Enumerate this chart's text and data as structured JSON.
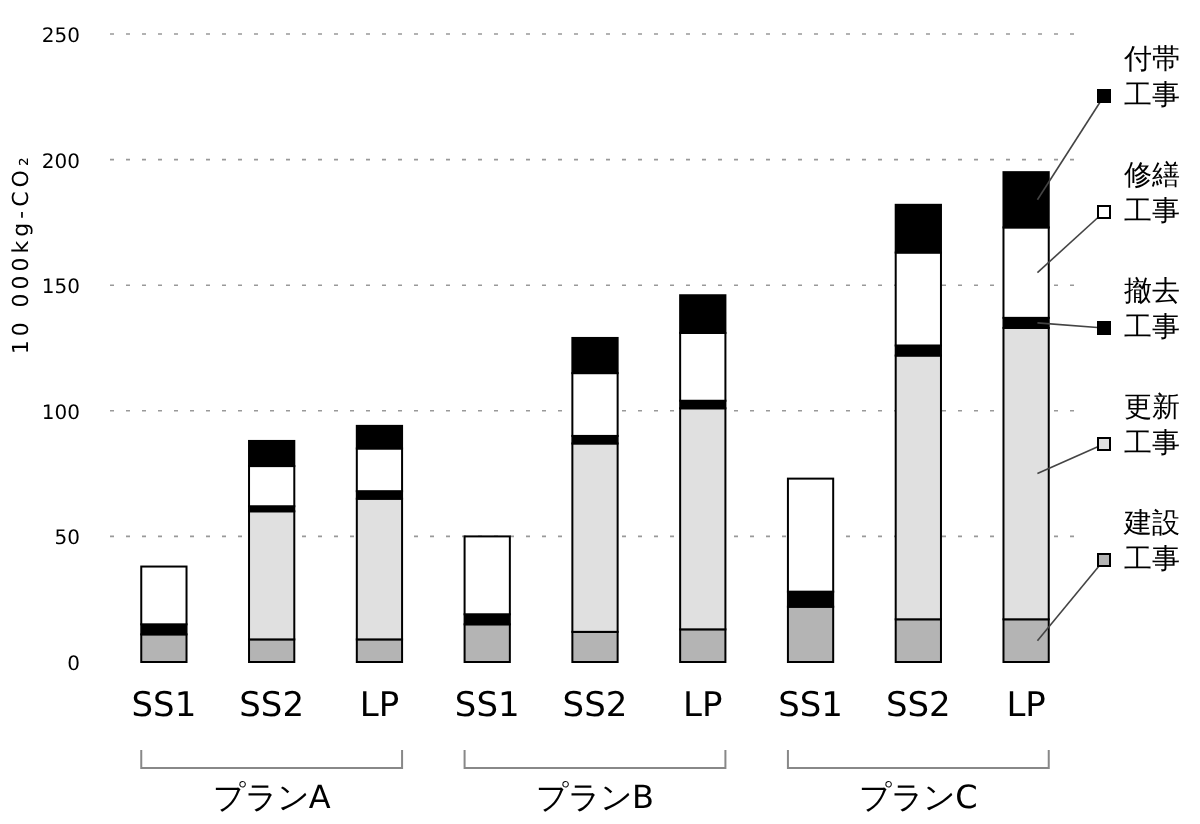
{
  "chart_data": {
    "type": "bar",
    "stacked": true,
    "ylabel": "10 000kg-CO₂",
    "categories": [
      "SS1",
      "SS2",
      "LP",
      "SS1",
      "SS2",
      "LP",
      "SS1",
      "SS2",
      "LP"
    ],
    "series": [
      {
        "name": "建設工事",
        "color": "#b4b4b4",
        "values": [
          11,
          9,
          9,
          15,
          12,
          13,
          22,
          17,
          17
        ]
      },
      {
        "name": "更新工事",
        "color": "#e0e0e0",
        "values": [
          0,
          51,
          56,
          0,
          75,
          88,
          0,
          105,
          116
        ]
      },
      {
        "name": "撤去工事",
        "color": "#000000",
        "values": [
          4,
          2,
          3,
          4,
          3,
          3,
          6,
          4,
          4
        ]
      },
      {
        "name": "修繕工事",
        "color": "#ffffff",
        "values": [
          23,
          16,
          17,
          31,
          25,
          27,
          45,
          37,
          36
        ]
      },
      {
        "name": "付帯工事",
        "color": "#000000",
        "values": [
          0,
          10,
          9,
          0,
          14,
          15,
          0,
          19,
          22
        ]
      }
    ],
    "ylim": [
      0,
      250
    ],
    "yticks": [
      0,
      50,
      100,
      150,
      200,
      250
    ],
    "grid": "y",
    "legend": "right",
    "annotations": [
      "プランA",
      "プランB",
      "プランC"
    ]
  }
}
